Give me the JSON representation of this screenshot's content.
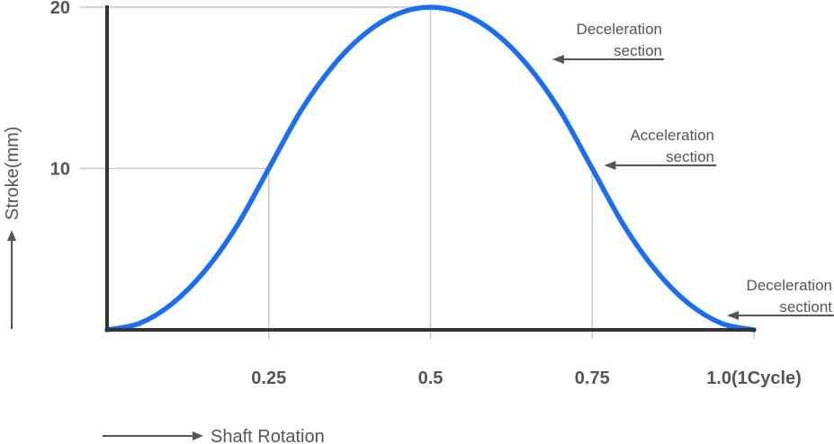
{
  "chart_data": {
    "type": "line",
    "title": "",
    "xlabel": "Shaft Rotation",
    "ylabel": "Stroke(mm)",
    "xlim": [
      0,
      1.0
    ],
    "ylim": [
      0,
      20
    ],
    "grid": "gridlines at tick positions",
    "x_ticks": [
      {
        "value": 0.25,
        "label": "0.25"
      },
      {
        "value": 0.5,
        "label": "0.5"
      },
      {
        "value": 0.75,
        "label": "0.75"
      },
      {
        "value": 1.0,
        "label": "1.0(1Cycle)"
      }
    ],
    "y_ticks": [
      {
        "value": 10,
        "label": "10"
      },
      {
        "value": 20,
        "label": "20"
      }
    ],
    "series": [
      {
        "color": "#1a6ef5",
        "x": [
          0,
          0.05,
          0.1,
          0.15,
          0.2,
          0.25,
          0.3,
          0.35,
          0.4,
          0.45,
          0.5,
          0.55,
          0.6,
          0.65,
          0.7,
          0.75,
          0.8,
          0.85,
          0.9,
          0.95,
          1.0
        ],
        "y": [
          0,
          0.4,
          1.6,
          3.6,
          6.4,
          10,
          13.6,
          16.4,
          18.4,
          19.6,
          20,
          19.6,
          18.4,
          16.4,
          13.6,
          10,
          6.4,
          3.6,
          1.6,
          0.4,
          0
        ]
      }
    ],
    "annotations": [
      {
        "lines": [
          "Deceleration",
          "section"
        ],
        "x": 0.68,
        "y": 16.8
      },
      {
        "lines": [
          "Acceleration",
          "section"
        ],
        "x": 0.76,
        "y": 10.1
      },
      {
        "lines": [
          "Deceleration",
          "sectiont"
        ],
        "x": 0.95,
        "y": 0.9
      }
    ]
  }
}
